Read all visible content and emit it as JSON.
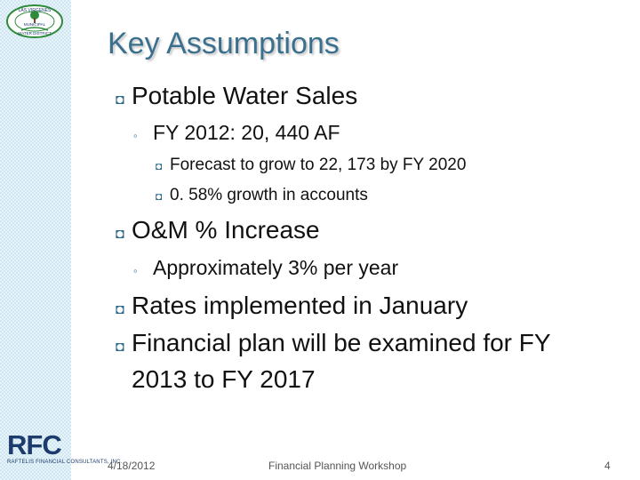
{
  "slide": {
    "title": "Key Assumptions",
    "page_number": "4"
  },
  "logos": {
    "district_logo": {
      "ring_top_text": "LAS VIRGENES",
      "center_text": "MUNICIPAL",
      "ring_bottom_text": "WATER DISTRICT"
    },
    "rfc_logo": {
      "letters": "RFC",
      "subtitle": "RAFTELIS FINANCIAL CONSULTANTS, INC."
    }
  },
  "content": {
    "bullets": {
      "level1_glyph": "◘",
      "level2_glyph": "◦",
      "level3_glyph": "◘"
    },
    "items": [
      {
        "text": "Potable Water Sales"
      },
      {
        "text": "FY 2012: 20, 440 AF"
      },
      {
        "text": "Forecast to grow to 22, 173 by FY 2020"
      },
      {
        "text": "0. 58% growth in accounts"
      },
      {
        "text": "O&M % Increase"
      },
      {
        "text": "Approximately 3% per year"
      },
      {
        "text": "Rates implemented in January"
      },
      {
        "text": "Financial plan will be examined for FY"
      },
      {
        "text": "2013 to FY 2017"
      }
    ]
  },
  "footer": {
    "date": "4/18/2012",
    "event": "Financial Planning Workshop"
  },
  "colors": {
    "title": "#3a6f8e",
    "sidebar": "#cfe6f3",
    "bullet": "#2f6b8c",
    "logo_navy": "#1d3c6e",
    "logo_green": "#2e8b3a"
  }
}
